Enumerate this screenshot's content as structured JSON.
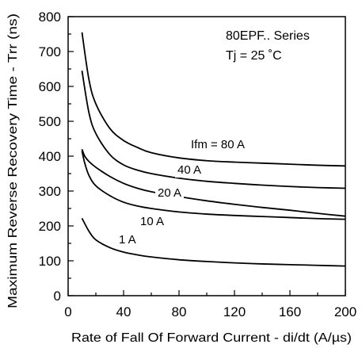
{
  "chart_data": {
    "type": "line",
    "xlabel": "Rate of Fall Of Forward Current - di/dt (A/µs)",
    "ylabel": "Maximum Reverse Recovery Time - Trr (ns)",
    "xlim": [
      0,
      200
    ],
    "ylim": [
      0,
      800
    ],
    "xticks": [
      0,
      40,
      80,
      120,
      160,
      200
    ],
    "yticks": [
      0,
      100,
      200,
      300,
      400,
      500,
      600,
      700,
      800
    ],
    "grid": false,
    "annotations": [
      "80EPF.. Series",
      "Tj = 25 ˚C"
    ],
    "series": [
      {
        "name": "Ifm = 80 A",
        "x": [
          10,
          15,
          20,
          30,
          40,
          50,
          60,
          80,
          100,
          120,
          140,
          160,
          180,
          200
        ],
        "y": [
          755,
          620,
          550,
          480,
          445,
          425,
          410,
          395,
          387,
          383,
          380,
          377,
          374,
          372
        ]
      },
      {
        "name": "40 A",
        "x": [
          10,
          15,
          20,
          30,
          40,
          50,
          60,
          80,
          100,
          120,
          140,
          160,
          180,
          200
        ],
        "y": [
          645,
          525,
          465,
          405,
          375,
          360,
          350,
          337,
          328,
          322,
          317,
          313,
          310,
          308
        ]
      },
      {
        "name": "20 A",
        "x": [
          10,
          12,
          15,
          20,
          30,
          40,
          50,
          60,
          80,
          100,
          120,
          140,
          160,
          180,
          200
        ],
        "y": [
          420,
          400,
          385,
          368,
          342,
          322,
          308,
          298,
          284,
          272,
          262,
          253,
          245,
          236,
          228
        ]
      },
      {
        "name": "10 A",
        "x": [
          10,
          12,
          15,
          20,
          30,
          40,
          50,
          60,
          80,
          100,
          120,
          140,
          160,
          180,
          200
        ],
        "y": [
          415,
          380,
          345,
          315,
          287,
          268,
          257,
          250,
          240,
          234,
          230,
          227,
          224,
          221,
          219
        ]
      },
      {
        "name": "1 A",
        "x": [
          10,
          15,
          20,
          30,
          40,
          50,
          60,
          80,
          100,
          120,
          140,
          160,
          180,
          200
        ],
        "y": [
          222,
          185,
          160,
          138,
          125,
          117,
          111,
          103,
          98,
          94,
          91,
          89,
          87,
          85
        ]
      }
    ]
  }
}
